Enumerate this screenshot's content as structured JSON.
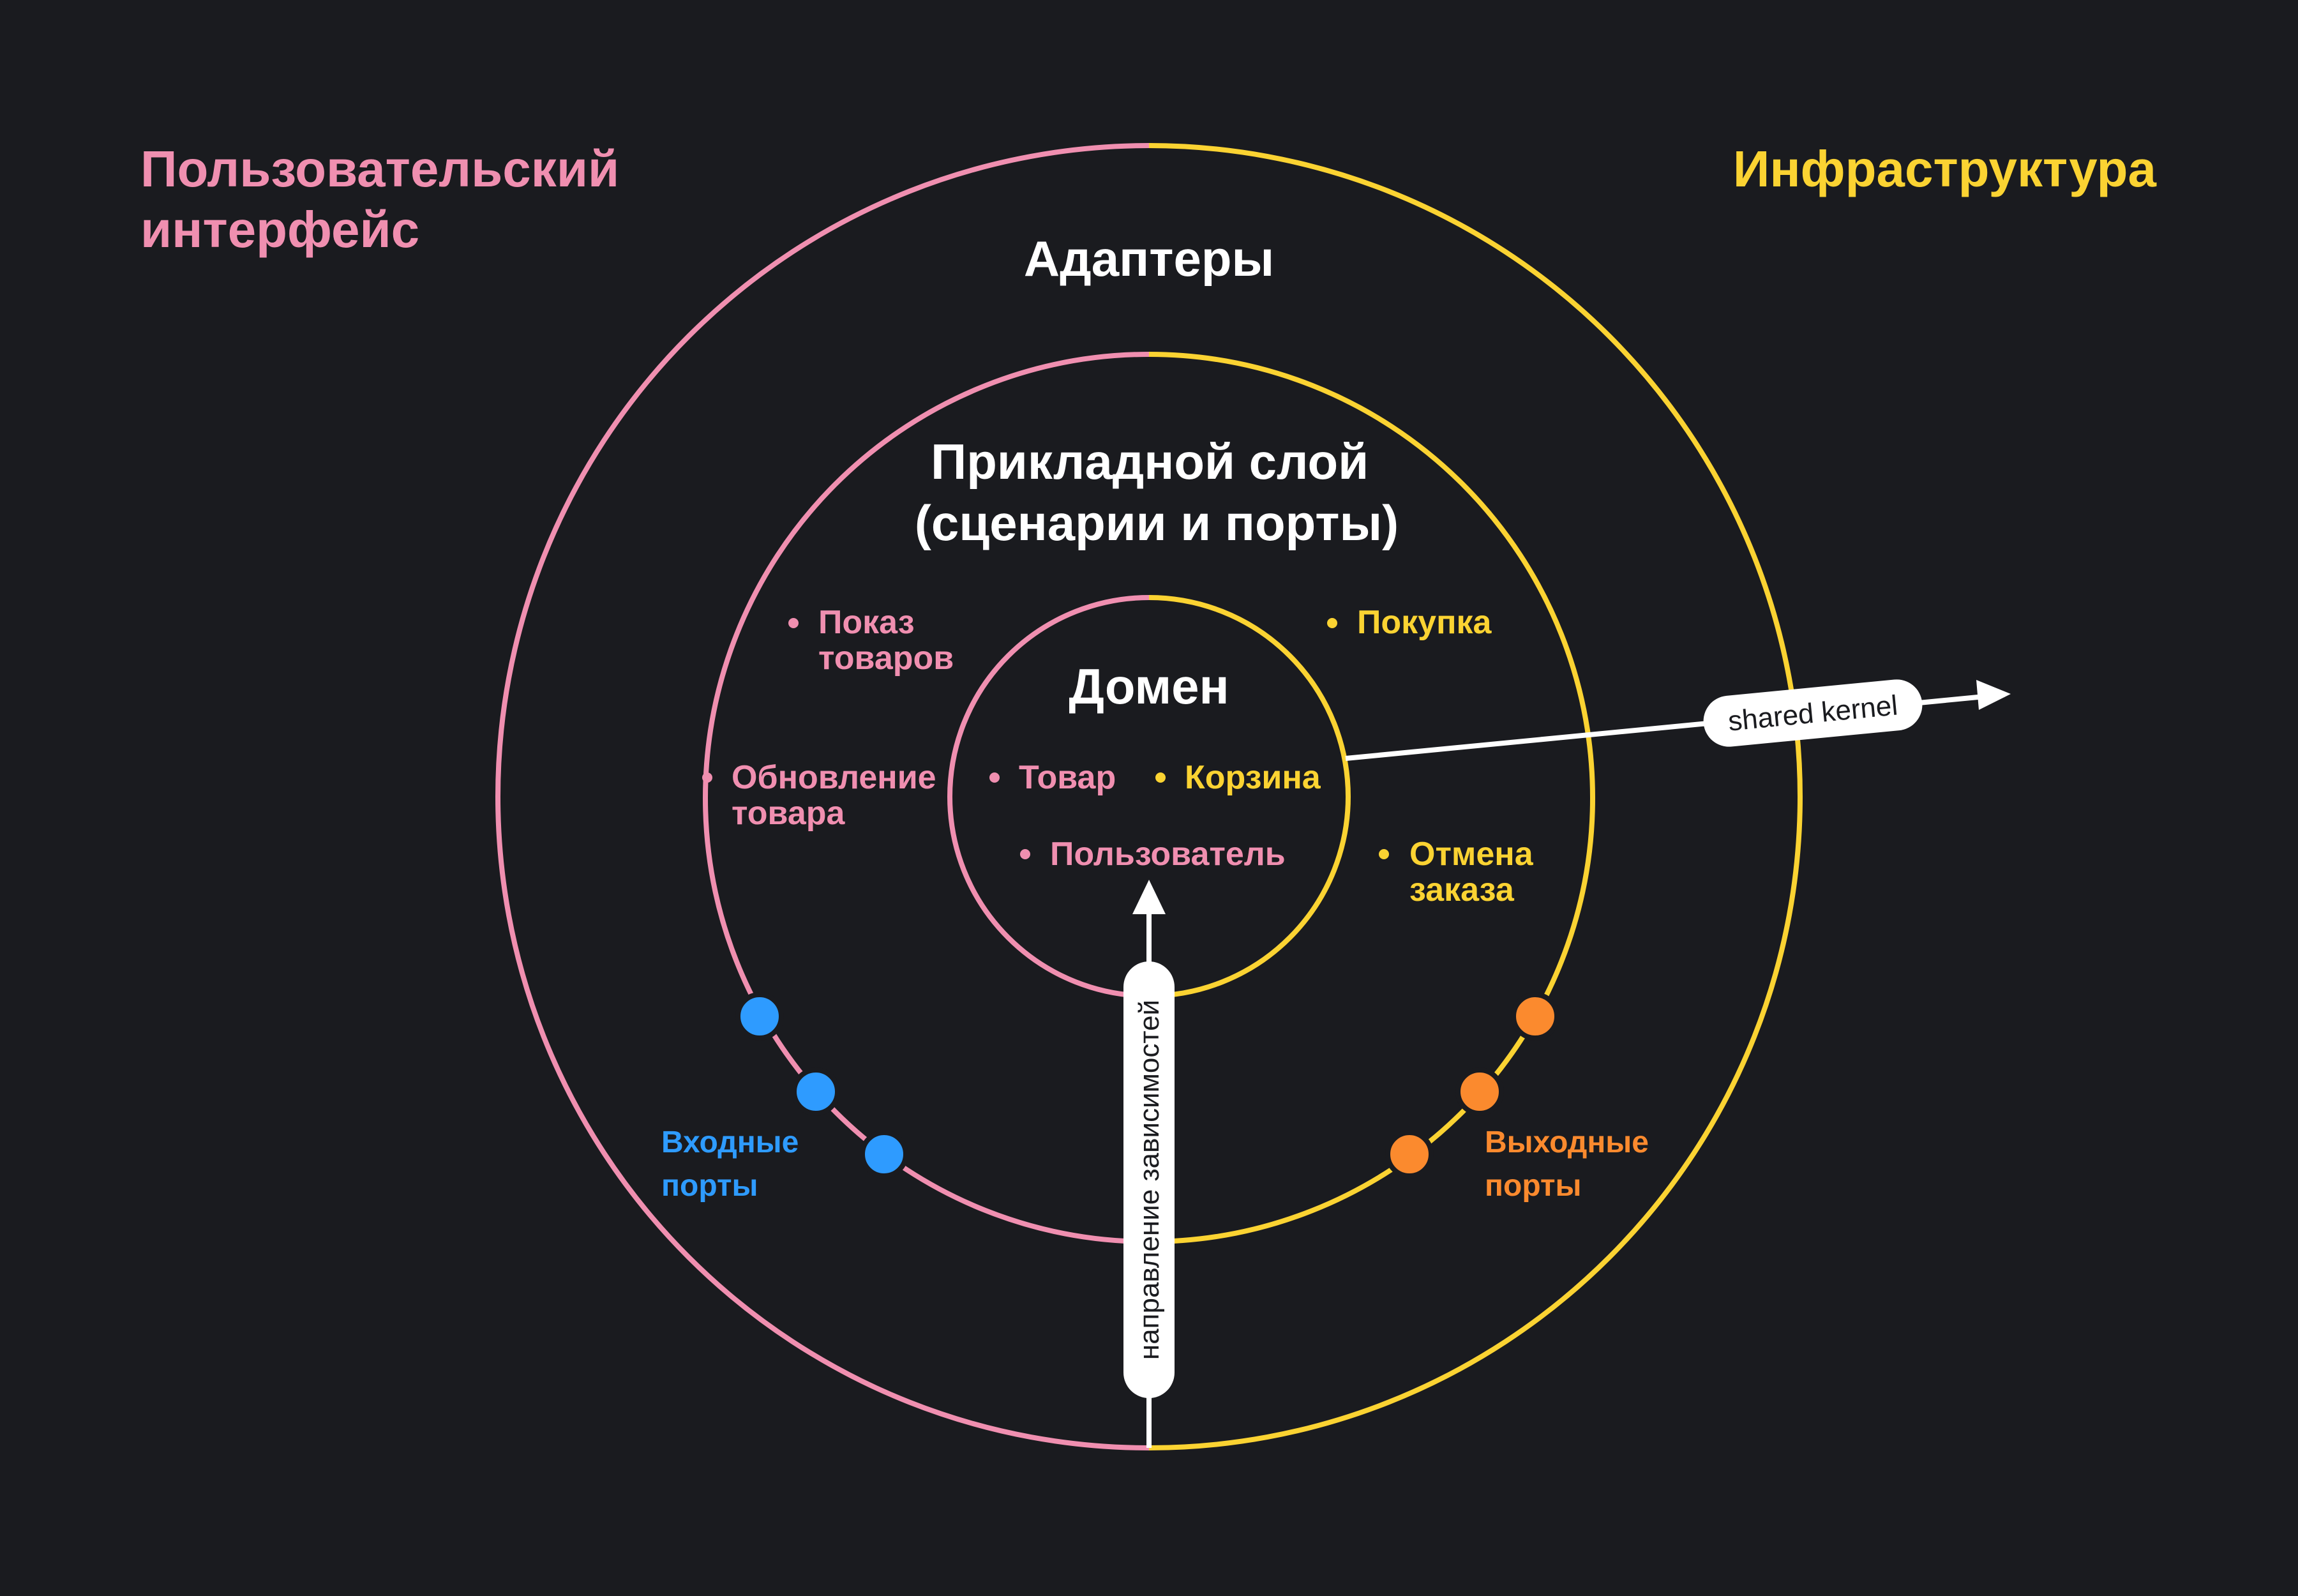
{
  "corner_labels": {
    "ui_line1": "Пользовательский",
    "ui_line2": "интерфейс",
    "infrastructure": "Инфраструктура"
  },
  "layers": {
    "adapters": "Адаптеры",
    "application_line1": "Прикладной слой",
    "application_line2": "(сценарии и порты)",
    "domain": "Домен"
  },
  "application_items": {
    "show_products_line1": "Показ",
    "show_products_line2": "товаров",
    "update_product_line1": "Обновление",
    "update_product_line2": "товара",
    "purchase": "Покупка",
    "cancel_order_line1": "Отмена",
    "cancel_order_line2": "заказа"
  },
  "domain_items": {
    "product": "Товар",
    "cart": "Корзина",
    "user": "Пользователь"
  },
  "ports": {
    "input_line1": "Входные",
    "input_line2": "порты",
    "output_line1": "Выходные",
    "output_line2": "порты"
  },
  "arrows": {
    "shared_kernel": "shared kernel",
    "dependency_direction": "направление зависимостей"
  },
  "colors": {
    "background": "#1a1b1f",
    "ui_pink": "#f08fb0",
    "infrastructure_yellow": "#fbd332",
    "input_port_blue": "#2e9bff",
    "output_port_orange": "#fb8a2e"
  }
}
